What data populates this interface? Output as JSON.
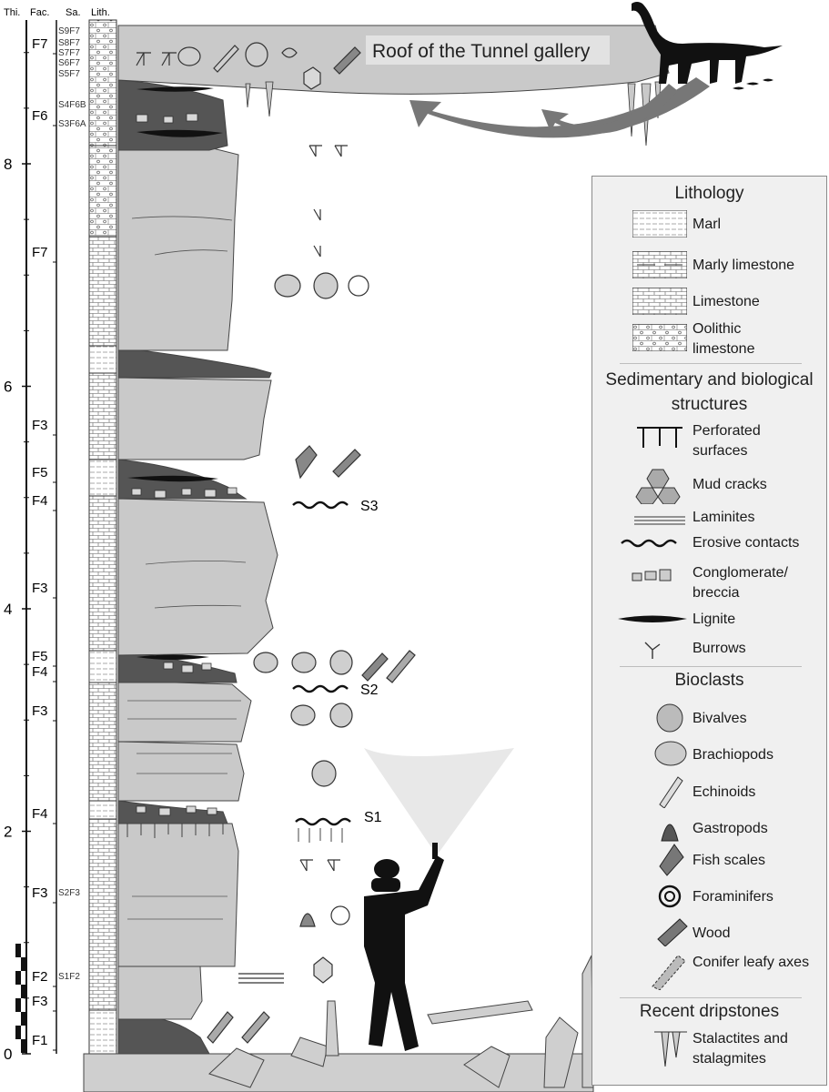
{
  "columns": {
    "thickness": "Thi.",
    "facies": "Fac.",
    "samples": "Sa.",
    "lithology": "Lith."
  },
  "scale": {
    "ticks": [
      "0",
      "2",
      "4",
      "6",
      "8"
    ],
    "metres_max": 9.3
  },
  "facies_labels": [
    "F7",
    "F6",
    "F7",
    "F3",
    "F5",
    "F4",
    "F3",
    "F5",
    "F4",
    "F3",
    "F4",
    "F3",
    "F2",
    "F3",
    "F1"
  ],
  "sample_labels": [
    "S9F7",
    "S8F7",
    "S7F7",
    "S6F7",
    "S5F7",
    "S4F6B",
    "S3F6A",
    "S2F3",
    "S1F2"
  ],
  "surfaces": [
    "S3",
    "S2",
    "S1"
  ],
  "gallery_label": "Roof of the Tunnel gallery",
  "legend": {
    "lithology_title": "Lithology",
    "lithology": [
      "Marl",
      "Marly limestone",
      "Limestone",
      "Oolithic limestone"
    ],
    "structures_title": "Sedimentary and biological structures",
    "structures": [
      "Perforated surfaces",
      "Mud cracks",
      "Laminites",
      "Erosive contacts",
      "Conglomerate/ breccia",
      "Lignite",
      "Burrows"
    ],
    "bioclasts_title": "Bioclasts",
    "bioclasts": [
      "Bivalves",
      "Brachiopods",
      "Echinoids",
      "Gastropods",
      "Fish scales",
      "Foraminifers",
      "Wood",
      "Conifer leafy axes"
    ],
    "dripstones_title": "Recent dripstones",
    "dripstones": [
      "Stalactites and stalagmites"
    ]
  },
  "colors": {
    "rock": "#c9c9c9",
    "dark": "#555555",
    "black": "#111111",
    "legend_bg": "#f0f0f0"
  }
}
